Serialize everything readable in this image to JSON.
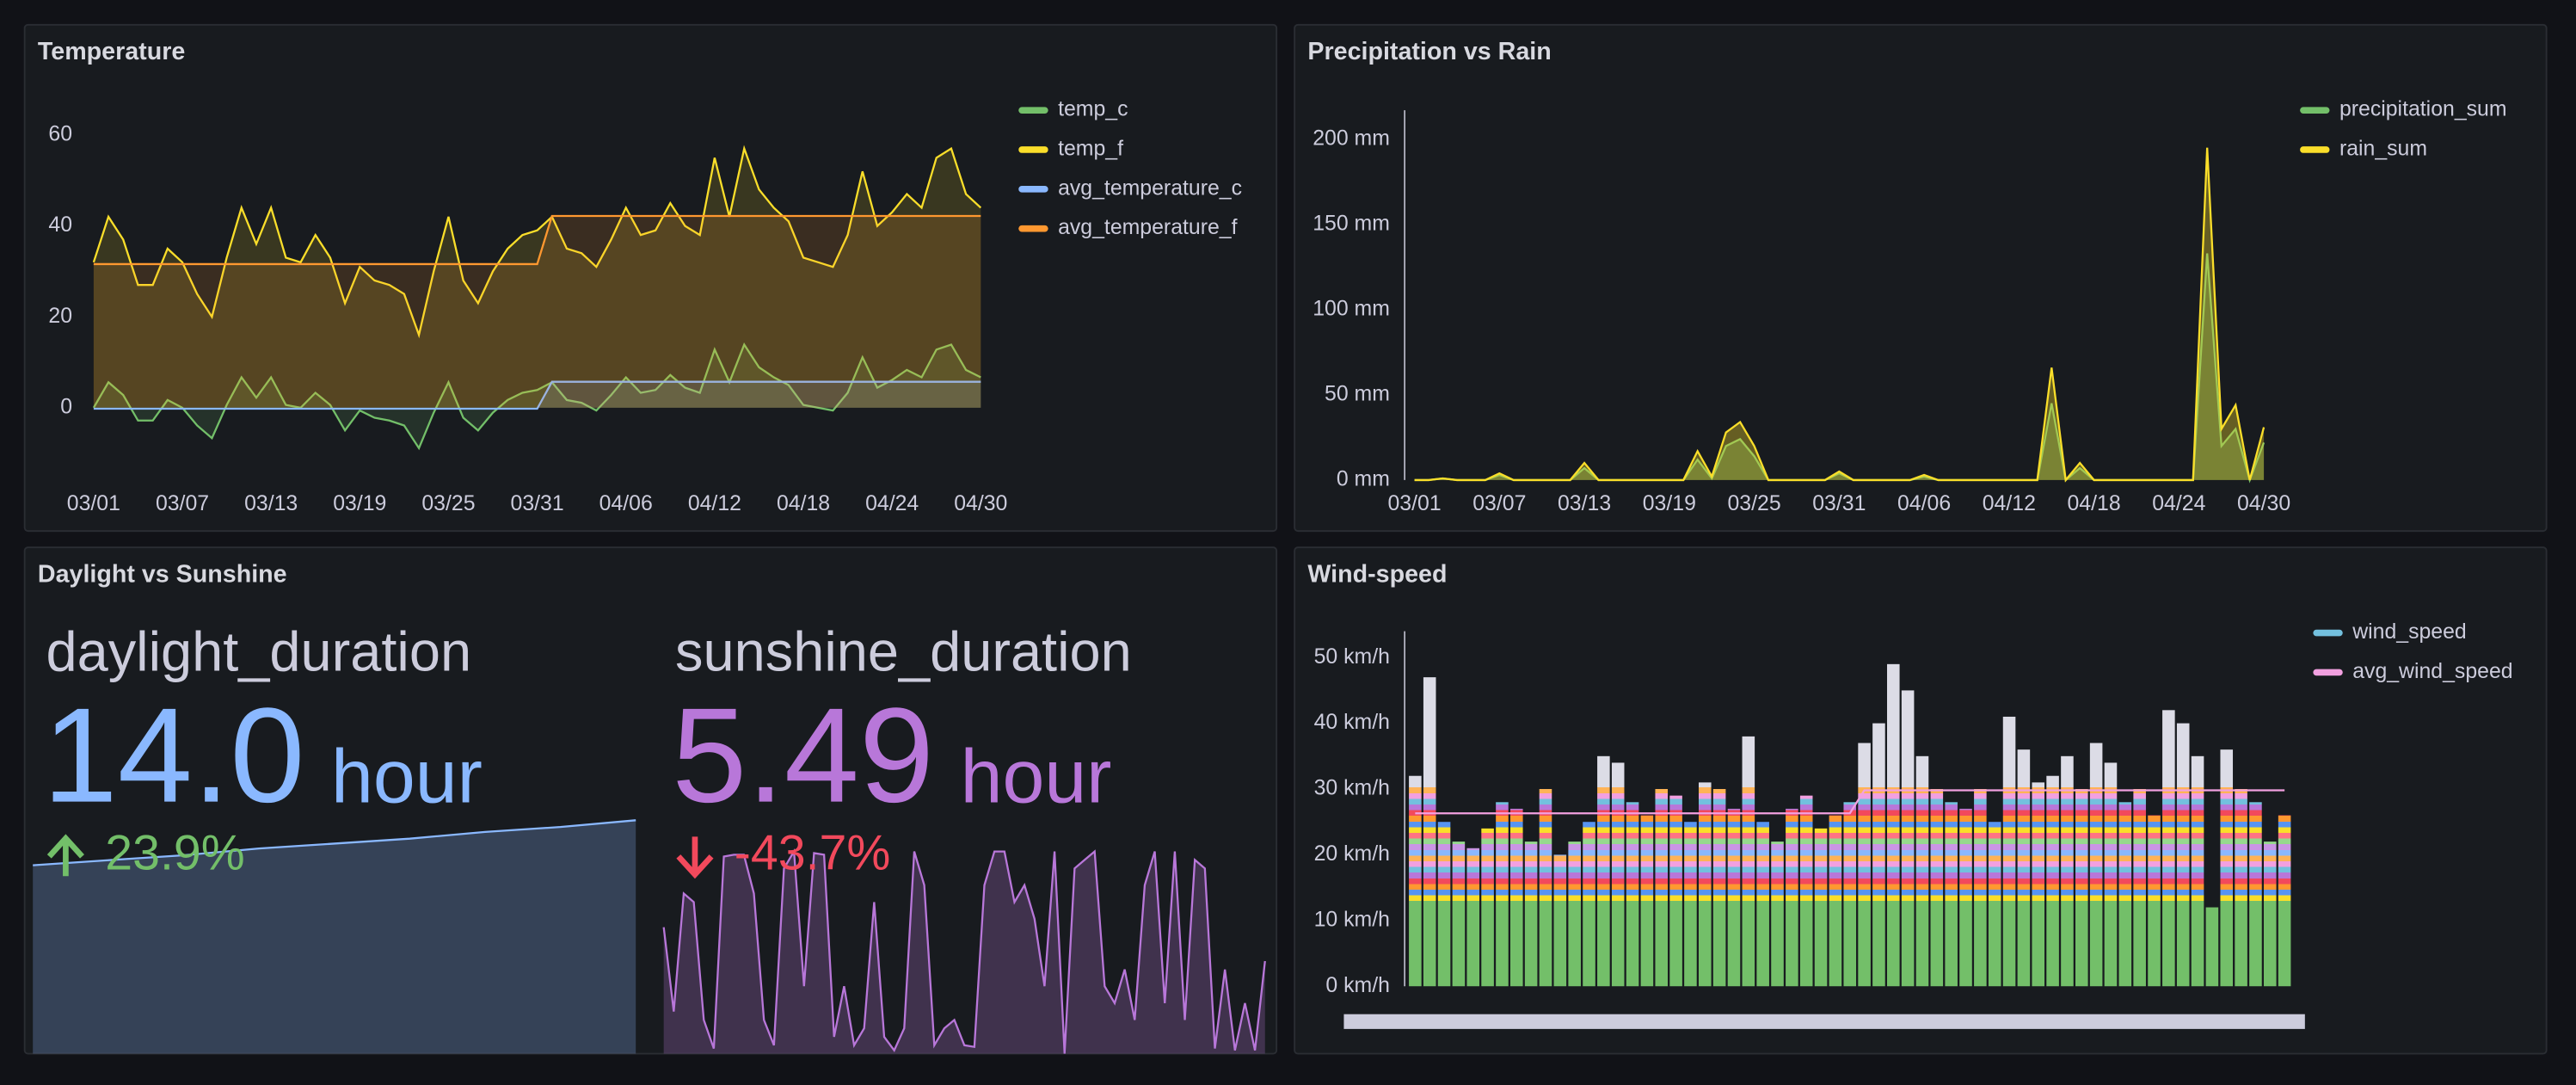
{
  "panels": [
    {
      "title": "Temperature",
      "type": "line",
      "categories": [
        "03/01",
        null,
        null,
        null,
        null,
        null,
        "03/07",
        null,
        null,
        null,
        null,
        null,
        "03/13",
        null,
        null,
        null,
        null,
        null,
        "03/19",
        null,
        null,
        null,
        null,
        null,
        "03/25",
        null,
        null,
        null,
        null,
        null,
        "03/31",
        null,
        null,
        null,
        null,
        null,
        "04/06",
        null,
        null,
        null,
        null,
        null,
        "04/12",
        null,
        null,
        null,
        null,
        null,
        "04/18",
        null,
        null,
        null,
        null,
        null,
        "04/24",
        null,
        null,
        null,
        null,
        null,
        "04/30"
      ],
      "ylim": [
        -15,
        68
      ],
      "yticks": [
        0,
        20,
        40,
        60
      ],
      "series": [
        {
          "name": "temp_c",
          "color": "#73bf69",
          "values": [
            0,
            5.6,
            2.8,
            -2.8,
            -2.8,
            1.7,
            0,
            -3.9,
            -6.7,
            0.6,
            6.7,
            2.2,
            6.7,
            0.6,
            0,
            3.3,
            0.6,
            -5,
            -0.6,
            -2.2,
            -2.8,
            -3.9,
            -8.9,
            -1.1,
            5.6,
            -2.2,
            -5,
            -1.1,
            1.7,
            3.3,
            3.9,
            5.6,
            1.7,
            1.1,
            -0.6,
            2.8,
            6.7,
            3.3,
            3.9,
            7.2,
            4.4,
            3.3,
            12.8,
            5.6,
            13.9,
            8.9,
            6.7,
            5,
            0.6,
            0,
            -0.6,
            3.3,
            11.1,
            4.4,
            6.1,
            8.3,
            6.7,
            12.8,
            13.9,
            8.3,
            6.7
          ]
        },
        {
          "name": "temp_f",
          "color": "#fade2a",
          "values": [
            32,
            42,
            37,
            27,
            27,
            35,
            32,
            25,
            20,
            33,
            44,
            36,
            44,
            33,
            32,
            38,
            33,
            23,
            31,
            28,
            27,
            25,
            16,
            30,
            42,
            28,
            23,
            30,
            35,
            38,
            39,
            42,
            35,
            34,
            31,
            37,
            44,
            38,
            39,
            45,
            40,
            38,
            55,
            42,
            57,
            48,
            44,
            41,
            33,
            32,
            31,
            38,
            52,
            40,
            43,
            47,
            44,
            55,
            57,
            47,
            44
          ]
        },
        {
          "name": "avg_temperature_c",
          "color": "#8ab8ff",
          "values": [
            -0.2,
            -0.2,
            -0.2,
            -0.2,
            -0.2,
            -0.2,
            -0.2,
            -0.2,
            -0.2,
            -0.2,
            -0.2,
            -0.2,
            -0.2,
            -0.2,
            -0.2,
            -0.2,
            -0.2,
            -0.2,
            -0.2,
            -0.2,
            -0.2,
            -0.2,
            -0.2,
            -0.2,
            -0.2,
            -0.2,
            -0.2,
            -0.2,
            -0.2,
            -0.2,
            -0.2,
            5.7,
            5.7,
            5.7,
            5.7,
            5.7,
            5.7,
            5.7,
            5.7,
            5.7,
            5.7,
            5.7,
            5.7,
            5.7,
            5.7,
            5.7,
            5.7,
            5.7,
            5.7,
            5.7,
            5.7,
            5.7,
            5.7,
            5.7,
            5.7,
            5.7,
            5.7,
            5.7,
            5.7,
            5.7,
            5.7
          ]
        },
        {
          "name": "avg_temperature_f",
          "color": "#ff9830",
          "values": [
            31.6,
            31.6,
            31.6,
            31.6,
            31.6,
            31.6,
            31.6,
            31.6,
            31.6,
            31.6,
            31.6,
            31.6,
            31.6,
            31.6,
            31.6,
            31.6,
            31.6,
            31.6,
            31.6,
            31.6,
            31.6,
            31.6,
            31.6,
            31.6,
            31.6,
            31.6,
            31.6,
            31.6,
            31.6,
            31.6,
            31.6,
            42.2,
            42.2,
            42.2,
            42.2,
            42.2,
            42.2,
            42.2,
            42.2,
            42.2,
            42.2,
            42.2,
            42.2,
            42.2,
            42.2,
            42.2,
            42.2,
            42.2,
            42.2,
            42.2,
            42.2,
            42.2,
            42.2,
            42.2,
            42.2,
            42.2,
            42.2,
            42.2,
            42.2,
            42.2,
            42.2
          ]
        }
      ]
    },
    {
      "title": "Precipitation vs Rain",
      "type": "line",
      "categories": [
        "03/01",
        null,
        null,
        null,
        null,
        null,
        "03/07",
        null,
        null,
        null,
        null,
        null,
        "03/13",
        null,
        null,
        null,
        null,
        null,
        "03/19",
        null,
        null,
        null,
        null,
        null,
        "03/25",
        null,
        null,
        null,
        null,
        null,
        "03/31",
        null,
        null,
        null,
        null,
        null,
        "04/06",
        null,
        null,
        null,
        null,
        null,
        "04/12",
        null,
        null,
        null,
        null,
        null,
        "04/18",
        null,
        null,
        null,
        null,
        null,
        "04/24",
        null,
        null,
        null,
        null,
        null,
        "04/30"
      ],
      "ylim": [
        0,
        217
      ],
      "yticks": [
        {
          "value": 0,
          "label": "0 mm"
        },
        {
          "value": 50,
          "label": "50 mm"
        },
        {
          "value": 100,
          "label": "100 mm"
        },
        {
          "value": 150,
          "label": "150 mm"
        },
        {
          "value": 200,
          "label": "200 mm"
        }
      ],
      "series": [
        {
          "name": "precipitation_sum",
          "color": "#73bf69",
          "values": [
            0,
            0,
            1,
            0,
            0,
            0,
            3,
            0,
            0,
            0,
            0,
            0,
            7,
            0,
            0,
            0,
            0,
            0,
            0,
            0,
            12,
            1,
            20,
            24,
            14,
            0,
            0,
            0,
            0,
            0,
            4,
            0,
            0,
            0,
            0,
            0,
            2,
            0,
            0,
            0,
            0,
            0,
            0,
            0,
            0,
            45,
            0,
            7,
            0,
            0,
            0,
            0,
            0,
            0,
            0,
            0,
            133,
            20,
            30,
            0,
            22
          ]
        },
        {
          "name": "rain_sum",
          "color": "#fade2a",
          "values": [
            0,
            0,
            1,
            0,
            0,
            0,
            4,
            0,
            0,
            0,
            0,
            0,
            10,
            0,
            0,
            0,
            0,
            0,
            0,
            0,
            17,
            2,
            28,
            34,
            20,
            0,
            0,
            0,
            0,
            0,
            5,
            0,
            0,
            0,
            0,
            0,
            3,
            0,
            0,
            0,
            0,
            0,
            0,
            0,
            0,
            66,
            0,
            10,
            0,
            0,
            0,
            0,
            0,
            0,
            0,
            0,
            195,
            30,
            44,
            0,
            31
          ]
        }
      ]
    },
    {
      "title": "Daylight vs Sunshine",
      "type": "stat",
      "stats": [
        {
          "name": "daylight_duration",
          "value": 14,
          "value_label": "14.0",
          "unit": "hour",
          "change": 23.9,
          "change_label": "23.9%",
          "color": "#8ab8ff",
          "change_color": "#73bf69",
          "sparkline": [
            11.3,
            11.6,
            11.9,
            12.3,
            12.6,
            12.9,
            13.3,
            13.6,
            14
          ]
        },
        {
          "name": "sunshine_duration",
          "value": 5.49,
          "unit": "hour",
          "change": -43.7,
          "change_label": "-43.7%",
          "color": "#b877d9",
          "change_color": "#f2495c",
          "sparkline": [
            7.5,
            2.5,
            9.5,
            9,
            2,
            0.3,
            11.7,
            11.8,
            11.8,
            9.5,
            2,
            0.5,
            11,
            12,
            4,
            11.9,
            11.8,
            1,
            4,
            0.5,
            1.5,
            9,
            1,
            0.2,
            1.5,
            12,
            10,
            0.5,
            1.5,
            2,
            0.5,
            0.4,
            10,
            12,
            12,
            9,
            10,
            8,
            4,
            12,
            0,
            11,
            11.5,
            12,
            4,
            3,
            5,
            2,
            10,
            12,
            3,
            12,
            2,
            11.5,
            11,
            0.3,
            5,
            0.2,
            3,
            0.2,
            5.49
          ]
        }
      ]
    },
    {
      "title": "Wind-speed",
      "type": "bar",
      "ylim": [
        0,
        54
      ],
      "yticks": [
        {
          "value": 0,
          "label": "0 km/h"
        },
        {
          "value": 10,
          "label": "10 km/h"
        },
        {
          "value": 20,
          "label": "20 km/h"
        },
        {
          "value": 30,
          "label": "30 km/h"
        },
        {
          "value": 40,
          "label": "40 km/h"
        },
        {
          "value": 50,
          "label": "50 km/h"
        }
      ],
      "series": [
        {
          "name": "wind_speed",
          "color": "#73c0de",
          "values": [
            32,
            47,
            25,
            22,
            21,
            24,
            28,
            27,
            22,
            30,
            20,
            22,
            25,
            35,
            34,
            28,
            26,
            30,
            29,
            25,
            31,
            30,
            27,
            38,
            25,
            22,
            27,
            29,
            24,
            26,
            28,
            37,
            40,
            49,
            45,
            35,
            30,
            28,
            27,
            30,
            25,
            41,
            36,
            31,
            32,
            35,
            30,
            37,
            34,
            28,
            30,
            26,
            42,
            40,
            35,
            12,
            36,
            30,
            28,
            22,
            26
          ]
        },
        {
          "name": "avg_wind_speed",
          "color": "#f2a0e0",
          "values": [
            26.3,
            26.3,
            26.3,
            26.3,
            26.3,
            26.3,
            26.3,
            26.3,
            26.3,
            26.3,
            26.3,
            26.3,
            26.3,
            26.3,
            26.3,
            26.3,
            26.3,
            26.3,
            26.3,
            26.3,
            26.3,
            26.3,
            26.3,
            26.3,
            26.3,
            26.3,
            26.3,
            26.3,
            26.3,
            26.3,
            26.3,
            29.8,
            29.8,
            29.8,
            29.8,
            29.8,
            29.8,
            29.8,
            29.8,
            29.8,
            29.8,
            29.8,
            29.8,
            29.8,
            29.8,
            29.8,
            29.8,
            29.8,
            29.8,
            29.8,
            29.8,
            29.8,
            29.8,
            29.8,
            29.8,
            29.8,
            29.8,
            29.8,
            29.8,
            29.8,
            29.8
          ]
        }
      ]
    }
  ]
}
